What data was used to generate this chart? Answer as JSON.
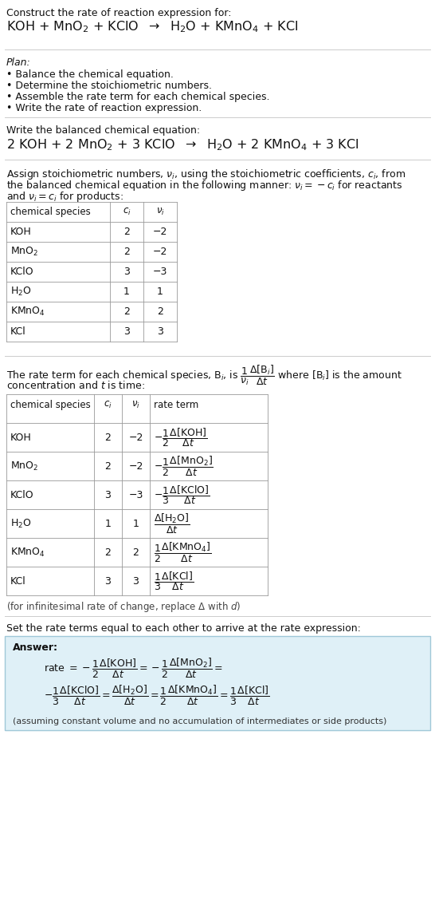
{
  "title_line1": "Construct the rate of reaction expression for:",
  "table1_headers": [
    "chemical species",
    "c_i",
    "v_i"
  ],
  "table1_rows": [
    [
      "KOH",
      "2",
      "−2"
    ],
    [
      "MnO₂",
      "2",
      "−2"
    ],
    [
      "KClO",
      "3",
      "−3"
    ],
    [
      "H₂O",
      "1",
      "1"
    ],
    [
      "KMnO₄",
      "2",
      "2"
    ],
    [
      "KCl",
      "3",
      "3"
    ]
  ],
  "table2_rows": [
    [
      "KOH",
      "2",
      "−2"
    ],
    [
      "MnO₂",
      "2",
      "−2"
    ],
    [
      "KClO",
      "3",
      "−3"
    ],
    [
      "H₂O",
      "1",
      "1"
    ],
    [
      "KMnO₄",
      "2",
      "2"
    ],
    [
      "KCl",
      "3",
      "3"
    ]
  ],
  "answer_box_color": "#dff0f7",
  "answer_footnote": "(assuming constant volume and no accumulation of intermediates or side products)",
  "bg_color": "#ffffff",
  "table_border_color": "#999999",
  "separator_color": "#cccccc"
}
